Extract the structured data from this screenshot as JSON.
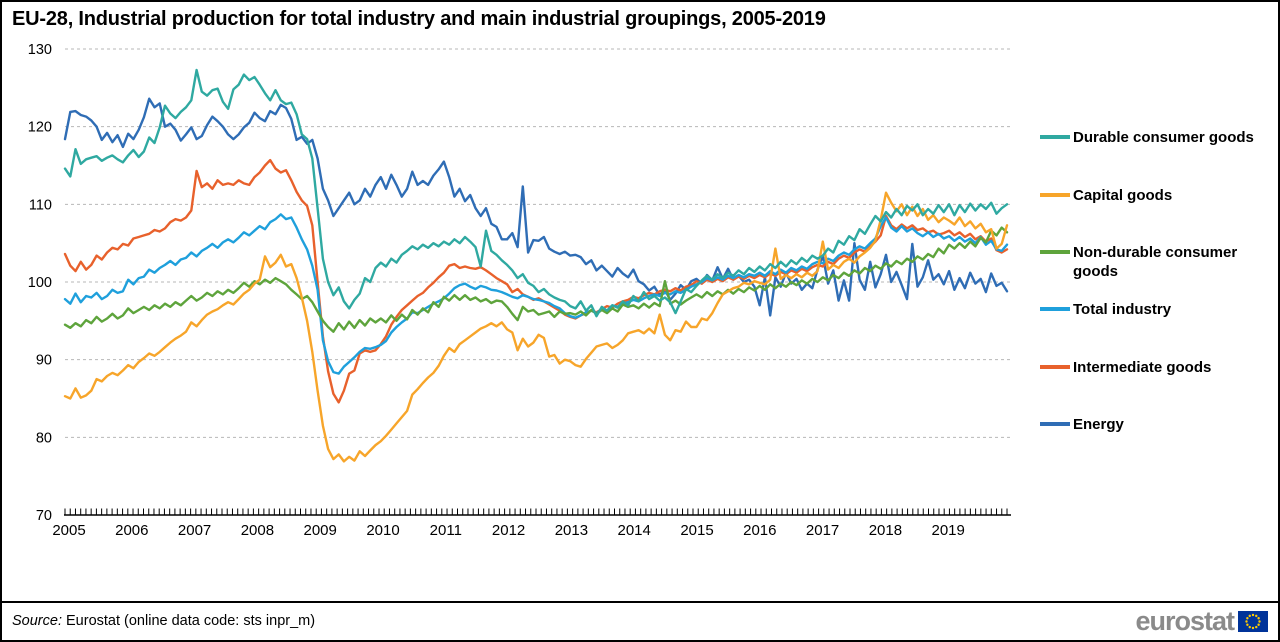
{
  "title": "EU-28, Industrial production for total industry and main industrial groupings, 2005-2019",
  "source": {
    "prefix": "Source:",
    "rest": " Eurostat (online data code: sts inpr_m)"
  },
  "logo": {
    "text": "eurostat",
    "flag_blue": "#003399",
    "flag_star_color": "#ffcc00"
  },
  "chart_data": {
    "type": "line",
    "title": "EU-28, Industrial production for total industry and main industrial groupings, 2005-2019",
    "x_unit": "month",
    "x_start": "2005-01",
    "x_end": "2019-12",
    "x_month_count": 180,
    "x_tick_labels": [
      "2005",
      "2006",
      "2007",
      "2008",
      "2009",
      "2010",
      "2011",
      "2012",
      "2013",
      "2014",
      "2015",
      "2016",
      "2017",
      "2018",
      "2019"
    ],
    "y_ticks": [
      70,
      80,
      90,
      100,
      110,
      120,
      130
    ],
    "ylim": [
      70,
      130
    ],
    "grid": "dashed-horizontal",
    "gridline_color": "#b7b7b7",
    "legend_position": "right",
    "series": [
      {
        "name": "Durable consumer goods",
        "color": "#2fa9a1",
        "values": [
          114.6,
          113.6,
          117.1,
          115.2,
          115.8,
          116.0,
          116.2,
          115.6,
          116.0,
          116.3,
          115.8,
          115.4,
          116.3,
          117.0,
          116.1,
          116.8,
          118.6,
          117.9,
          119.9,
          122.7,
          121.7,
          121.1,
          121.9,
          122.5,
          123.4,
          127.3,
          124.5,
          124.0,
          124.7,
          124.9,
          123.2,
          122.3,
          124.8,
          125.4,
          126.7,
          126.0,
          126.4,
          125.4,
          124.3,
          123.4,
          124.7,
          123.4,
          122.9,
          123.1,
          121.6,
          119.0,
          118.4,
          115.9,
          109.5,
          103.0,
          100.0,
          98.3,
          99.3,
          97.5,
          96.6,
          97.7,
          98.5,
          100.5,
          100.0,
          101.8,
          102.5,
          102.0,
          103.0,
          102.5,
          103.5,
          104.0,
          104.6,
          104.2,
          104.8,
          104.4,
          105.0,
          104.6,
          105.2,
          104.8,
          105.5,
          105.0,
          105.8,
          105.2,
          104.5,
          102.0,
          106.6,
          104.0,
          103.5,
          102.8,
          102.2,
          101.5,
          100.5,
          101.0,
          99.9,
          99.5,
          98.7,
          99.1,
          98.4,
          98.0,
          97.7,
          97.5,
          96.9,
          96.6,
          97.5,
          96.3,
          97.0,
          95.6,
          96.8,
          96.3,
          97.0,
          96.7,
          97.5,
          97.0,
          98.2,
          97.5,
          98.7,
          97.8,
          98.2,
          97.6,
          98.0,
          97.4,
          96.0,
          97.5,
          99.1,
          98.7,
          99.5,
          100.2,
          100.8,
          100.3,
          101.0,
          100.5,
          101.2,
          100.8,
          101.5,
          101.0,
          101.8,
          101.3,
          102.0,
          101.5,
          102.3,
          101.8,
          102.6,
          102.0,
          102.8,
          102.3,
          103.1,
          102.6,
          103.4,
          103.0,
          103.4,
          104.3,
          103.8,
          105.3,
          104.8,
          105.9,
          105.4,
          106.8,
          106.2,
          107.4,
          108.5,
          107.8,
          109.0,
          108.3,
          109.4,
          108.6,
          109.8,
          109.2,
          110.0,
          108.6,
          109.4,
          108.8,
          109.9,
          109.0,
          110.0,
          108.6,
          109.9,
          109.0,
          110.1,
          109.2,
          110.0,
          109.4,
          110.2,
          108.8,
          109.5,
          110.0
        ]
      },
      {
        "name": "Capital goods",
        "color": "#f7a52a",
        "values": [
          85.3,
          85.0,
          86.3,
          85.1,
          85.4,
          86.0,
          87.5,
          87.2,
          87.9,
          88.3,
          88.0,
          88.6,
          89.3,
          88.9,
          89.7,
          90.2,
          90.8,
          90.5,
          91.0,
          91.6,
          92.2,
          92.7,
          93.1,
          93.6,
          94.8,
          94.3,
          95.1,
          95.8,
          96.2,
          96.5,
          97.0,
          97.4,
          97.1,
          97.8,
          98.5,
          99.0,
          99.8,
          100.3,
          103.3,
          101.9,
          102.5,
          103.5,
          102.0,
          102.3,
          100.5,
          98.0,
          95.0,
          91.0,
          86.0,
          81.5,
          78.5,
          77.2,
          77.8,
          76.9,
          77.5,
          77.0,
          78.2,
          77.6,
          78.3,
          79.0,
          79.5,
          80.2,
          81.0,
          81.8,
          82.6,
          83.4,
          85.5,
          86.2,
          87.0,
          87.7,
          88.3,
          89.2,
          90.5,
          91.5,
          91.0,
          92.0,
          92.5,
          93.0,
          93.5,
          94.0,
          94.3,
          94.7,
          94.3,
          94.8,
          93.9,
          93.5,
          91.2,
          92.7,
          91.7,
          92.2,
          93.2,
          92.8,
          90.4,
          90.6,
          89.5,
          90.0,
          89.8,
          89.3,
          89.1,
          90.1,
          90.9,
          91.7,
          91.9,
          92.1,
          91.5,
          91.9,
          92.5,
          93.4,
          93.6,
          93.8,
          93.4,
          94.0,
          93.4,
          95.8,
          93.2,
          92.5,
          93.8,
          93.6,
          94.9,
          94.2,
          94.2,
          95.3,
          95.1,
          96.0,
          97.3,
          98.4,
          98.8,
          99.2,
          99.4,
          99.9,
          99.7,
          100.1,
          99.9,
          99.7,
          100.3,
          104.3,
          100.4,
          100.9,
          100.5,
          101.0,
          100.6,
          101.2,
          100.8,
          101.4,
          105.2,
          101.6,
          102.2,
          101.8,
          102.6,
          103.0,
          102.5,
          103.3,
          103.8,
          104.4,
          105.3,
          108.0,
          111.5,
          110.2,
          109.1,
          110.0,
          108.6,
          109.7,
          108.5,
          109.4,
          108.0,
          108.6,
          107.7,
          108.3,
          107.9,
          107.4,
          108.3,
          107.2,
          107.8,
          106.9,
          107.5,
          106.4,
          106.8,
          104.3,
          104.9,
          107.3
        ]
      },
      {
        "name": "Non-durable consumer goods",
        "color": "#5ea43c",
        "values": [
          94.5,
          94.1,
          94.7,
          94.3,
          95.1,
          94.7,
          95.5,
          94.9,
          95.3,
          95.9,
          95.3,
          95.7,
          96.6,
          96.0,
          96.4,
          96.8,
          96.4,
          97.0,
          96.6,
          97.2,
          96.8,
          97.4,
          97.0,
          97.6,
          98.2,
          97.6,
          98.0,
          98.6,
          98.2,
          98.8,
          98.4,
          99.0,
          98.6,
          99.2,
          99.9,
          99.4,
          100.1,
          99.7,
          100.3,
          99.9,
          100.5,
          100.1,
          99.7,
          99.0,
          98.4,
          97.8,
          98.2,
          97.4,
          96.2,
          95.0,
          94.2,
          93.6,
          94.7,
          93.9,
          94.9,
          94.1,
          95.1,
          94.4,
          95.3,
          94.8,
          95.3,
          94.8,
          95.7,
          95.0,
          95.8,
          95.2,
          96.4,
          95.8,
          96.6,
          96.1,
          97.4,
          96.8,
          98.1,
          97.6,
          98.3,
          97.7,
          98.3,
          97.7,
          98.0,
          97.5,
          97.8,
          97.3,
          97.6,
          97.5,
          96.8,
          95.9,
          95.1,
          96.8,
          96.2,
          96.4,
          95.8,
          96.0,
          96.2,
          95.5,
          96.2,
          95.9,
          96.0,
          95.8,
          96.2,
          95.7,
          96.4,
          95.9,
          96.4,
          96.0,
          96.6,
          96.2,
          97.1,
          96.8,
          97.0,
          96.6,
          97.2,
          96.7,
          97.3,
          96.9,
          100.1,
          97.2,
          97.6,
          97.1,
          97.6,
          98.0,
          98.4,
          98.0,
          98.7,
          98.2,
          98.8,
          98.4,
          99.0,
          98.5,
          99.1,
          98.7,
          99.3,
          98.9,
          99.5,
          99.0,
          99.7,
          99.2,
          99.8,
          99.4,
          100.0,
          99.6,
          100.2,
          99.8,
          100.4,
          100.0,
          100.6,
          100.2,
          100.9,
          100.5,
          101.2,
          100.8,
          101.5,
          101.1,
          101.8,
          101.4,
          102.1,
          101.7,
          102.4,
          102.0,
          102.7,
          102.3,
          103.0,
          102.6,
          103.3,
          102.9,
          103.6,
          103.2,
          104.3,
          103.7,
          104.8,
          104.3,
          105.0,
          104.4,
          105.2,
          104.6,
          105.7,
          105.1,
          106.6,
          106.0,
          107.0,
          106.4
        ]
      },
      {
        "name": "Total industry",
        "color": "#1fa0dc",
        "values": [
          97.8,
          97.2,
          98.5,
          97.4,
          98.2,
          98.0,
          98.6,
          97.8,
          98.2,
          99.0,
          98.6,
          98.8,
          100.3,
          99.7,
          100.5,
          100.7,
          101.6,
          101.2,
          101.8,
          102.2,
          102.7,
          102.2,
          102.9,
          103.1,
          103.8,
          103.3,
          104.0,
          104.4,
          104.9,
          104.4,
          105.1,
          105.5,
          105.1,
          105.7,
          106.4,
          106.0,
          106.6,
          107.2,
          106.8,
          107.7,
          108.1,
          108.7,
          108.1,
          108.3,
          107.0,
          105.5,
          104.2,
          102.1,
          99.0,
          92.5,
          89.8,
          88.4,
          88.2,
          89.1,
          89.7,
          90.3,
          91.0,
          91.5,
          91.4,
          91.6,
          91.9,
          92.4,
          93.5,
          94.2,
          94.8,
          95.3,
          96.1,
          96.0,
          96.4,
          96.8,
          97.2,
          97.5,
          97.9,
          98.5,
          99.2,
          99.6,
          99.8,
          99.4,
          99.1,
          99.5,
          99.3,
          99.0,
          98.9,
          98.7,
          98.4,
          98.1,
          97.9,
          98.3,
          98.1,
          97.8,
          97.7,
          97.5,
          97.3,
          96.9,
          96.6,
          96.0,
          95.6,
          95.4,
          95.7,
          96.1,
          96.3,
          96.0,
          96.5,
          96.3,
          97.0,
          96.8,
          97.2,
          97.4,
          97.7,
          97.5,
          97.9,
          98.2,
          98.4,
          98.2,
          98.6,
          98.4,
          98.8,
          98.6,
          99.0,
          99.4,
          99.7,
          100.0,
          100.5,
          100.2,
          100.6,
          100.3,
          100.8,
          100.5,
          100.9,
          100.6,
          101.0,
          100.8,
          101.2,
          100.8,
          101.4,
          101.0,
          101.6,
          101.2,
          101.8,
          101.5,
          102.0,
          101.7,
          102.3,
          102.6,
          102.4,
          103.0,
          102.7,
          103.4,
          103.8,
          103.5,
          104.2,
          104.6,
          104.3,
          105.0,
          105.6,
          107.2,
          108.3,
          107.0,
          106.5,
          107.2,
          106.5,
          106.9,
          106.3,
          105.9,
          106.4,
          105.8,
          106.2,
          105.6,
          105.9,
          105.3,
          105.8,
          105.2,
          105.6,
          105.0,
          105.8,
          104.8,
          105.3,
          104.2,
          104.0,
          104.8
        ]
      },
      {
        "name": "Intermediate goods",
        "color": "#e8612c",
        "values": [
          103.6,
          102.1,
          101.4,
          102.6,
          101.6,
          102.2,
          103.4,
          102.9,
          103.8,
          104.4,
          104.2,
          104.9,
          104.7,
          105.6,
          105.8,
          106.0,
          106.2,
          106.7,
          106.5,
          106.9,
          107.7,
          108.1,
          107.9,
          108.3,
          109.2,
          114.3,
          112.2,
          112.7,
          112.0,
          113.1,
          112.5,
          112.7,
          112.5,
          113.1,
          112.7,
          112.5,
          113.5,
          114.1,
          115.0,
          115.7,
          114.6,
          114.1,
          114.4,
          113.1,
          111.6,
          110.5,
          109.8,
          107.3,
          100.0,
          93.0,
          88.5,
          85.6,
          84.5,
          86.0,
          88.2,
          88.6,
          90.8,
          91.2,
          91.0,
          91.2,
          92.0,
          93.0,
          94.5,
          95.5,
          96.4,
          97.0,
          97.6,
          98.2,
          98.6,
          99.3,
          99.9,
          100.6,
          101.2,
          102.1,
          102.3,
          101.8,
          102.0,
          101.8,
          101.7,
          101.9,
          101.5,
          101.0,
          100.5,
          100.1,
          99.7,
          98.7,
          99.1,
          98.4,
          98.1,
          97.7,
          97.9,
          97.5,
          97.1,
          96.7,
          96.3,
          95.8,
          95.5,
          95.3,
          95.7,
          96.0,
          96.3,
          96.1,
          96.5,
          96.9,
          96.7,
          97.2,
          97.5,
          97.7,
          98.1,
          97.9,
          98.3,
          98.6,
          98.4,
          98.8,
          99.0,
          98.8,
          99.2,
          98.9,
          99.4,
          99.6,
          100.1,
          99.8,
          100.3,
          100.0,
          100.4,
          100.1,
          100.6,
          100.3,
          100.7,
          100.4,
          100.8,
          100.5,
          100.9,
          100.6,
          101.1,
          100.8,
          101.3,
          101.0,
          101.5,
          101.2,
          101.7,
          101.4,
          101.9,
          102.2,
          102.0,
          102.6,
          102.3,
          103.0,
          103.4,
          103.1,
          103.8,
          104.2,
          103.9,
          104.6,
          105.2,
          106.0,
          108.5,
          107.3,
          106.8,
          107.4,
          106.9,
          107.3,
          106.7,
          106.9,
          106.4,
          106.6,
          106.1,
          106.3,
          106.6,
          106.0,
          106.4,
          105.8,
          106.2,
          105.5,
          105.9,
          105.2,
          105.6,
          104.1,
          103.8,
          104.2
        ]
      },
      {
        "name": "Energy",
        "color": "#2f6db5",
        "values": [
          118.4,
          121.9,
          122.0,
          121.5,
          121.3,
          120.8,
          120.0,
          118.3,
          119.2,
          118.0,
          118.9,
          117.4,
          119.1,
          118.4,
          119.6,
          121.2,
          123.6,
          122.5,
          123.0,
          120.0,
          120.4,
          119.6,
          118.2,
          119.0,
          119.9,
          118.4,
          118.8,
          120.2,
          121.3,
          120.7,
          120.0,
          119.0,
          118.4,
          119.0,
          119.9,
          120.5,
          121.8,
          121.1,
          120.7,
          122.0,
          121.6,
          122.8,
          122.4,
          121.0,
          118.3,
          118.7,
          117.8,
          118.3,
          115.9,
          112.0,
          110.5,
          108.5,
          109.5,
          110.5,
          111.5,
          110.0,
          110.5,
          112.0,
          111.0,
          112.5,
          113.5,
          112.0,
          113.8,
          112.5,
          111.0,
          112.0,
          114.2,
          112.5,
          113.0,
          112.5,
          113.7,
          114.5,
          115.5,
          113.5,
          111.0,
          112.0,
          110.4,
          111.2,
          109.5,
          108.5,
          109.5,
          107.5,
          107.1,
          105.5,
          105.5,
          106.3,
          104.5,
          112.3,
          103.8,
          105.4,
          105.3,
          105.8,
          104.3,
          103.9,
          103.6,
          103.9,
          103.4,
          103.5,
          103.2,
          102.3,
          102.8,
          101.5,
          102.1,
          101.4,
          100.7,
          101.8,
          101.1,
          100.6,
          101.6,
          100.1,
          99.7,
          98.9,
          99.4,
          98.3,
          99.0,
          97.7,
          98.5,
          99.6,
          99.0,
          100.1,
          100.4,
          99.8,
          100.9,
          100.2,
          101.9,
          100.4,
          101.7,
          100.3,
          100.8,
          100.0,
          100.3,
          99.4,
          97.0,
          100.6,
          95.7,
          100.6,
          99.4,
          101.2,
          99.8,
          100.4,
          99.0,
          99.8,
          99.2,
          101.6,
          103.4,
          99.8,
          101.5,
          97.6,
          100.2,
          97.6,
          105.0,
          100.3,
          99.0,
          102.6,
          99.3,
          101.0,
          103.5,
          100.0,
          101.3,
          99.6,
          97.8,
          104.9,
          99.4,
          100.6,
          102.8,
          100.3,
          101.0,
          99.7,
          101.4,
          99.0,
          100.5,
          99.2,
          101.2,
          99.8,
          100.4,
          98.7,
          101.1,
          99.5,
          99.9,
          98.8
        ]
      }
    ]
  }
}
